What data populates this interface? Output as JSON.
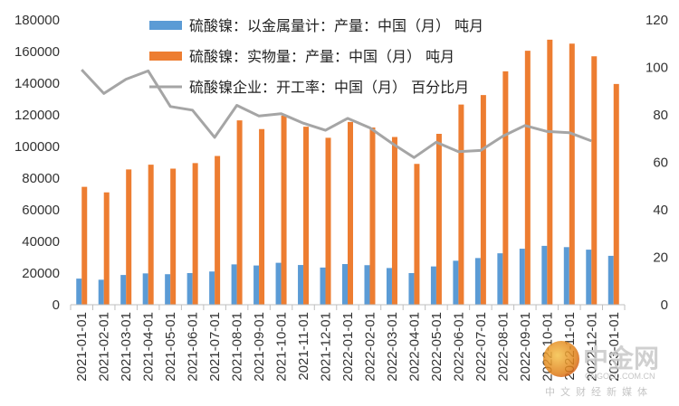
{
  "chart_data": {
    "type": "bar",
    "categories": [
      "2021-01-01",
      "2021-02-01",
      "2021-03-01",
      "2021-04-01",
      "2021-05-01",
      "2021-06-01",
      "2021-07-01",
      "2021-08-01",
      "2021-09-01",
      "2021-10-01",
      "2021-11-01",
      "2021-12-01",
      "2022-01-01",
      "2022-02-01",
      "2022-03-01",
      "2022-04-01",
      "2022-05-01",
      "2022-06-01",
      "2022-07-01",
      "2022-08-01",
      "2022-09-01",
      "2022-10-01",
      "2022-11-01",
      "2022-12-01",
      "2023-01-01"
    ],
    "series": [
      {
        "name": "硫酸镍：以金属量计：产量：中国（月） 吨月",
        "type": "bar",
        "axis": "left",
        "color": "#5b9bd5",
        "values": [
          16500,
          15800,
          18800,
          19800,
          19300,
          20000,
          21000,
          25500,
          24800,
          26500,
          25100,
          23500,
          25700,
          25000,
          23200,
          20000,
          24200,
          27800,
          29500,
          32500,
          35400,
          37200,
          36400,
          34800,
          30900
        ]
      },
      {
        "name": "硫酸镍：实物量：产量：中国（月） 吨月",
        "type": "bar",
        "axis": "left",
        "color": "#ed7d31",
        "values": [
          74500,
          71000,
          85500,
          88500,
          86000,
          89500,
          94000,
          116500,
          111000,
          119500,
          112500,
          105500,
          115500,
          112000,
          106000,
          89000,
          108000,
          126500,
          132500,
          147500,
          160500,
          167500,
          165000,
          157000,
          139500
        ]
      },
      {
        "name": "硫酸镍企业：开工率：中国（月） 百分比月",
        "type": "line",
        "axis": "right",
        "color": "#a5a5a5",
        "values": [
          99,
          89,
          95,
          98.5,
          83.5,
          82,
          70.5,
          84,
          79.5,
          80.5,
          76.5,
          73.5,
          78.5,
          74.5,
          68,
          62,
          68.5,
          64.5,
          65,
          71,
          75.5,
          73,
          72.5,
          69,
          null
        ]
      }
    ],
    "ylim": [
      0,
      180000
    ],
    "y2lim": [
      0,
      120
    ],
    "yticks": [
      "0",
      "20000",
      "40000",
      "60000",
      "80000",
      "100000",
      "120000",
      "140000",
      "160000",
      "180000"
    ],
    "y2ticks": [
      "0",
      "20",
      "40",
      "60",
      "80",
      "100",
      "120"
    ],
    "legend_position": "top",
    "grid": false
  },
  "watermark": {
    "title": "中金网",
    "url": "CNGOLD.COM.CN",
    "slogan": "中文财经新媒体"
  }
}
